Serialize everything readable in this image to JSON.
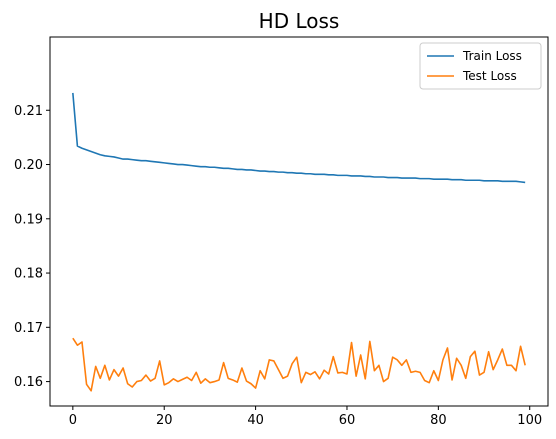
{
  "chart_data": {
    "type": "line",
    "title": "HD Loss",
    "xlabel": "",
    "ylabel": "",
    "xlim": [
      -5,
      104
    ],
    "ylim": [
      0.1555,
      0.2235
    ],
    "xticks": [
      0,
      20,
      40,
      60,
      80,
      100
    ],
    "xtick_labels": [
      "0",
      "20",
      "40",
      "60",
      "80",
      "100"
    ],
    "yticks": [
      0.16,
      0.17,
      0.18,
      0.19,
      0.2,
      0.21
    ],
    "ytick_labels": [
      "0.16",
      "0.17",
      "0.18",
      "0.19",
      "0.20",
      "0.21"
    ],
    "grid": false,
    "legend_position": "top-right",
    "x": [
      0,
      1,
      2,
      3,
      4,
      5,
      6,
      7,
      8,
      9,
      10,
      11,
      12,
      13,
      14,
      15,
      16,
      17,
      18,
      19,
      20,
      21,
      22,
      23,
      24,
      25,
      26,
      27,
      28,
      29,
      30,
      31,
      32,
      33,
      34,
      35,
      36,
      37,
      38,
      39,
      40,
      41,
      42,
      43,
      44,
      45,
      46,
      47,
      48,
      49,
      50,
      51,
      52,
      53,
      54,
      55,
      56,
      57,
      58,
      59,
      60,
      61,
      62,
      63,
      64,
      65,
      66,
      67,
      68,
      69,
      70,
      71,
      72,
      73,
      74,
      75,
      76,
      77,
      78,
      79,
      80,
      81,
      82,
      83,
      84,
      85,
      86,
      87,
      88,
      89,
      90,
      91,
      92,
      93,
      94,
      95,
      96,
      97,
      98,
      99
    ],
    "series": [
      {
        "name": "Train Loss",
        "color": "#1f77b4",
        "values": [
          0.2132,
          0.2034,
          0.203,
          0.2027,
          0.2024,
          0.2021,
          0.2018,
          0.2016,
          0.2015,
          0.2014,
          0.2012,
          0.201,
          0.201,
          0.2009,
          0.2008,
          0.2007,
          0.2007,
          0.2006,
          0.2005,
          0.2004,
          0.2003,
          0.2002,
          0.2001,
          0.2,
          0.2,
          0.1999,
          0.1998,
          0.1997,
          0.1996,
          0.1996,
          0.1995,
          0.1995,
          0.1994,
          0.1993,
          0.1993,
          0.1992,
          0.1991,
          0.1991,
          0.199,
          0.199,
          0.1989,
          0.1988,
          0.1988,
          0.1987,
          0.1987,
          0.1986,
          0.1986,
          0.1985,
          0.1985,
          0.1984,
          0.1984,
          0.1983,
          0.1983,
          0.1982,
          0.1982,
          0.1982,
          0.1981,
          0.1981,
          0.198,
          0.198,
          0.198,
          0.1979,
          0.1979,
          0.1979,
          0.1978,
          0.1978,
          0.1977,
          0.1977,
          0.1977,
          0.1976,
          0.1976,
          0.1976,
          0.1975,
          0.1975,
          0.1975,
          0.1975,
          0.1974,
          0.1974,
          0.1974,
          0.1973,
          0.1973,
          0.1973,
          0.1973,
          0.1972,
          0.1972,
          0.1972,
          0.1971,
          0.1971,
          0.1971,
          0.1971,
          0.197,
          0.197,
          0.197,
          0.197,
          0.1969,
          0.1969,
          0.1969,
          0.1969,
          0.1968,
          0.1967
        ]
      },
      {
        "name": "Test Loss",
        "color": "#ff7f0e",
        "values": [
          0.168,
          0.1667,
          0.1673,
          0.1595,
          0.1583,
          0.1628,
          0.1606,
          0.163,
          0.1603,
          0.1622,
          0.161,
          0.1625,
          0.1596,
          0.159,
          0.16,
          0.1602,
          0.1612,
          0.1601,
          0.1606,
          0.1638,
          0.1594,
          0.1598,
          0.1605,
          0.16,
          0.1604,
          0.1608,
          0.1602,
          0.1617,
          0.1597,
          0.1605,
          0.1598,
          0.16,
          0.1603,
          0.1635,
          0.1606,
          0.1603,
          0.1599,
          0.1625,
          0.1601,
          0.1596,
          0.1588,
          0.162,
          0.1605,
          0.164,
          0.1638,
          0.1622,
          0.1606,
          0.161,
          0.1633,
          0.1645,
          0.1598,
          0.1617,
          0.1613,
          0.1618,
          0.1605,
          0.1621,
          0.1614,
          0.1646,
          0.1616,
          0.1617,
          0.1614,
          0.1672,
          0.161,
          0.1649,
          0.1605,
          0.1674,
          0.162,
          0.163,
          0.16,
          0.1606,
          0.1645,
          0.164,
          0.163,
          0.164,
          0.1617,
          0.1619,
          0.1617,
          0.1602,
          0.1598,
          0.162,
          0.1602,
          0.164,
          0.1662,
          0.1603,
          0.1643,
          0.163,
          0.1606,
          0.1646,
          0.1656,
          0.1612,
          0.1617,
          0.1655,
          0.1622,
          0.164,
          0.166,
          0.163,
          0.163,
          0.162,
          0.1665,
          0.163
        ]
      }
    ]
  }
}
